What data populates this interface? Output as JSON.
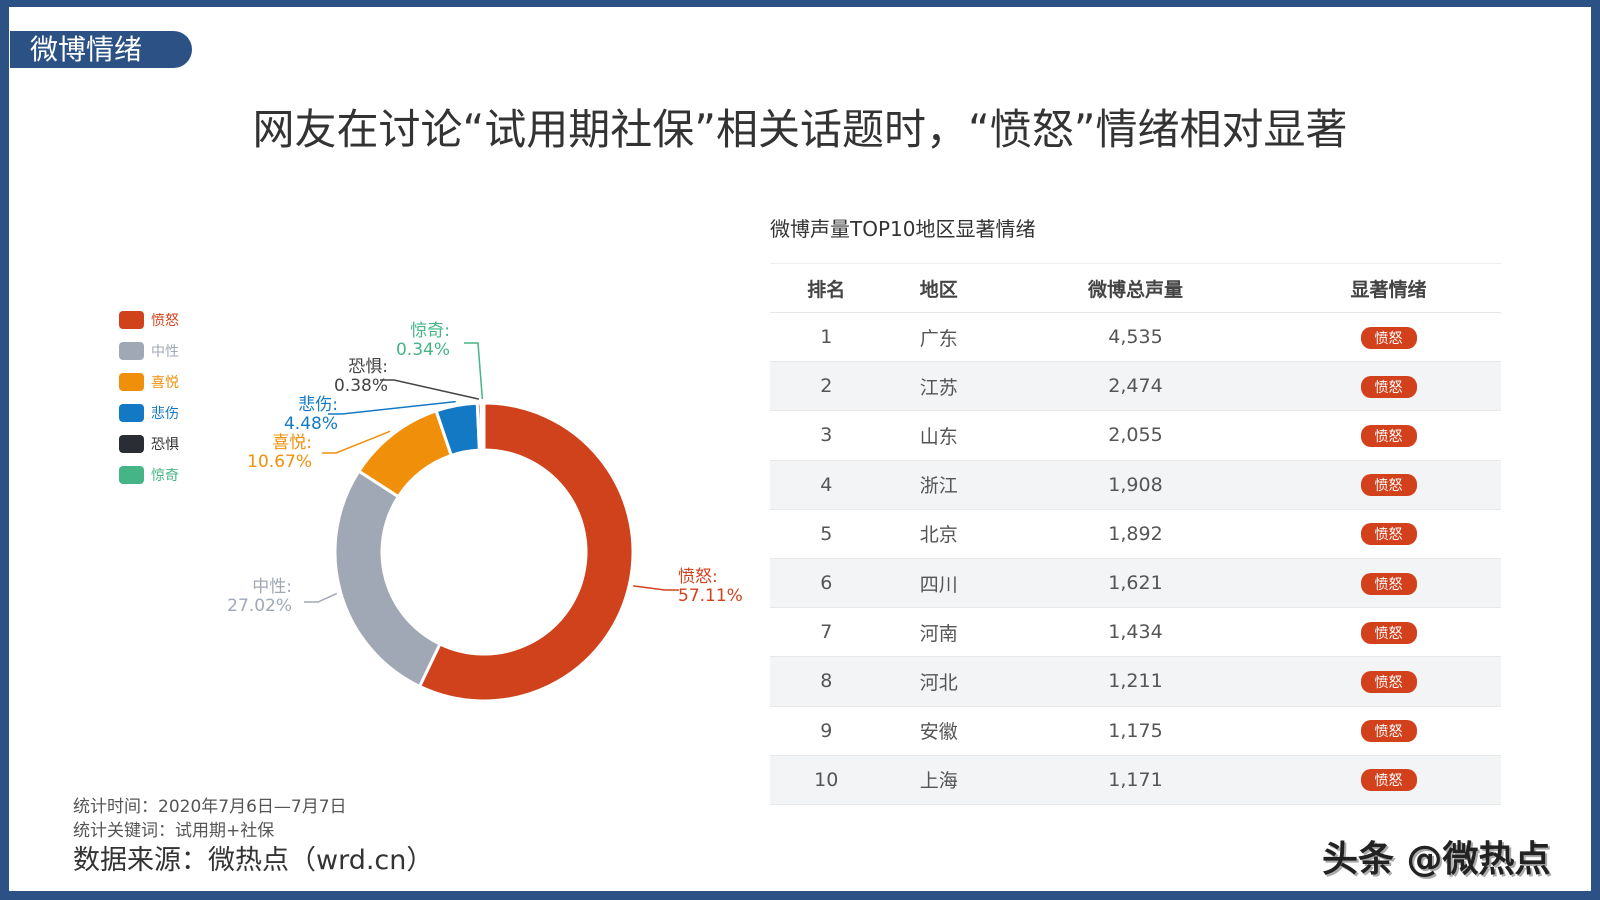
{
  "header": {
    "tag": "微博情绪",
    "title": "网友在讨论“试用期社保”相关话题时，“愤怒”情绪相对显著"
  },
  "chart_data": {
    "type": "pie",
    "variant": "donut",
    "legend_placement": "left",
    "slices": [
      {
        "name": "愤怒",
        "value": 57.11,
        "label": "57.11%",
        "color": "#d0421b"
      },
      {
        "name": "中性",
        "value": 27.02,
        "label": "27.02%",
        "color": "#a0a8b6"
      },
      {
        "name": "喜悦",
        "value": 10.67,
        "label": "10.67%",
        "color": "#f0900a"
      },
      {
        "name": "悲伤",
        "value": 4.48,
        "label": "4.48%",
        "color": "#1479c4"
      },
      {
        "name": "恐惧",
        "value": 0.38,
        "label": "0.38%",
        "color": "#2a2d33"
      },
      {
        "name": "惊奇",
        "value": 0.34,
        "label": "0.34%",
        "color": "#45b486"
      }
    ]
  },
  "table": {
    "title": "微博声量TOP10地区显著情绪",
    "headers": [
      "排名",
      "地区",
      "微博总声量",
      "显著情绪"
    ],
    "rows": [
      [
        "1",
        "广东",
        "4,535",
        "愤怒"
      ],
      [
        "2",
        "江苏",
        "2,474",
        "愤怒"
      ],
      [
        "3",
        "山东",
        "2,055",
        "愤怒"
      ],
      [
        "4",
        "浙江",
        "1,908",
        "愤怒"
      ],
      [
        "5",
        "北京",
        "1,892",
        "愤怒"
      ],
      [
        "6",
        "四川",
        "1,621",
        "愤怒"
      ],
      [
        "7",
        "河南",
        "1,434",
        "愤怒"
      ],
      [
        "8",
        "河北",
        "1,211",
        "愤怒"
      ],
      [
        "9",
        "安徽",
        "1,175",
        "愤怒"
      ],
      [
        "10",
        "上海",
        "1,171",
        "愤怒"
      ]
    ],
    "badge_color": "#d3401c"
  },
  "footer": {
    "time": "统计时间：2020年7月6日—7月7日",
    "keywords": "统计关键词：试用期+社保",
    "source": "数据来源：微热点（wrd.cn）",
    "watermark": "头条 @微热点"
  }
}
